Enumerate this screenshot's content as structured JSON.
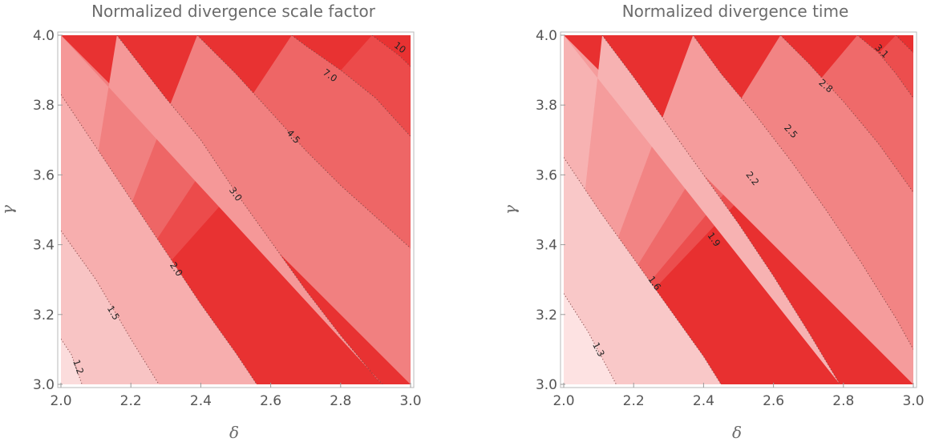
{
  "chart_data": [
    {
      "type": "contour",
      "title": "Normalized divergence scale factor",
      "xlabel": "δ",
      "ylabel": "γ",
      "xlim": [
        2.0,
        3.0
      ],
      "ylim": [
        3.0,
        4.0
      ],
      "xticks": [
        "2.0",
        "2.2",
        "2.4",
        "2.6",
        "2.8",
        "3.0"
      ],
      "yticks": [
        "3.0",
        "3.2",
        "3.4",
        "3.6",
        "3.8",
        "4.0"
      ],
      "levels": [
        "1.2",
        "1.5",
        "2.0",
        "3.0",
        "4.5",
        "7.0",
        "10"
      ],
      "fill_colors": [
        "#fbdcdc",
        "#f8c4c4",
        "#f7aeae",
        "#f59898",
        "#f18080",
        "#ee6666",
        "#ec4b4b",
        "#e83232"
      ],
      "contours": [
        {
          "level": "1.2",
          "points": [
            [
              2.0,
              3.13
            ],
            [
              2.03,
              3.085
            ],
            [
              2.06,
              3.0
            ]
          ],
          "label_at": [
            2.05,
            3.05
          ]
        },
        {
          "level": "1.5",
          "points": [
            [
              2.0,
              3.44
            ],
            [
              2.1,
              3.3
            ],
            [
              2.2,
              3.13
            ],
            [
              2.28,
              3.0
            ]
          ],
          "label_at": [
            2.15,
            3.205
          ]
        },
        {
          "level": "2.0",
          "points": [
            [
              2.0,
              3.83
            ],
            [
              2.1,
              3.68
            ],
            [
              2.2,
              3.53
            ],
            [
              2.3,
              3.38
            ],
            [
              2.4,
              3.23
            ],
            [
              2.5,
              3.09
            ],
            [
              2.56,
              3.0
            ]
          ],
          "label_at": [
            2.33,
            3.33
          ]
        },
        {
          "level": "3.0",
          "points": [
            [
              2.16,
              4.0
            ],
            [
              2.3,
              3.82
            ],
            [
              2.4,
              3.7
            ],
            [
              2.5,
              3.55
            ],
            [
              2.6,
              3.41
            ],
            [
              2.7,
              3.27
            ],
            [
              2.8,
              3.14
            ],
            [
              2.9,
              3.02
            ],
            [
              2.92,
              3.0
            ]
          ],
          "label_at": [
            2.5,
            3.545
          ]
        },
        {
          "level": "4.5",
          "points": [
            [
              2.39,
              4.0
            ],
            [
              2.5,
              3.89
            ],
            [
              2.6,
              3.78
            ],
            [
              2.7,
              3.67
            ],
            [
              2.8,
              3.57
            ],
            [
              2.9,
              3.48
            ],
            [
              3.0,
              3.39
            ]
          ],
          "label_at": [
            2.665,
            3.71
          ]
        },
        {
          "level": "7.0",
          "points": [
            [
              2.66,
              4.0
            ],
            [
              2.7,
              3.97
            ],
            [
              2.8,
              3.9
            ],
            [
              2.9,
              3.82
            ],
            [
              3.0,
              3.71
            ]
          ],
          "label_at": [
            2.77,
            3.885
          ]
        },
        {
          "level": "10",
          "points": [
            [
              2.89,
              4.0
            ],
            [
              2.93,
              3.97
            ],
            [
              2.97,
              3.94
            ],
            [
              3.0,
              3.91
            ]
          ],
          "label_at": [
            2.97,
            3.965
          ]
        }
      ]
    },
    {
      "type": "contour",
      "title": "Normalized divergence time",
      "xlabel": "δ",
      "ylabel": "γ",
      "xlim": [
        2.0,
        3.0
      ],
      "ylim": [
        3.0,
        4.0
      ],
      "xticks": [
        "2.0",
        "2.2",
        "2.4",
        "2.6",
        "2.8",
        "3.0"
      ],
      "yticks": [
        "3.0",
        "3.2",
        "3.4",
        "3.6",
        "3.8",
        "4.0"
      ],
      "levels": [
        "1.3",
        "1.6",
        "1.9",
        "2.2",
        "2.5",
        "2.8",
        "3.1"
      ],
      "fill_colors": [
        "#fde2e2",
        "#f9c8c8",
        "#f7b2b2",
        "#f59c9c",
        "#f28484",
        "#ef6a6a",
        "#ec4e4e",
        "#e83030"
      ],
      "contours": [
        {
          "level": "1.3",
          "points": [
            [
              2.0,
              3.26
            ],
            [
              2.07,
              3.15
            ],
            [
              2.15,
              3.0
            ]
          ],
          "label_at": [
            2.1,
            3.1
          ]
        },
        {
          "level": "1.6",
          "points": [
            [
              2.0,
              3.65
            ],
            [
              2.1,
              3.5
            ],
            [
              2.2,
              3.36
            ],
            [
              2.3,
              3.22
            ],
            [
              2.4,
              3.08
            ],
            [
              2.45,
              3.0
            ]
          ],
          "label_at": [
            2.26,
            3.29
          ]
        },
        {
          "level": "1.9",
          "points": [
            [
              2.11,
              4.0
            ],
            [
              2.2,
              3.88
            ],
            [
              2.3,
              3.74
            ],
            [
              2.4,
              3.6
            ],
            [
              2.5,
              3.46
            ],
            [
              2.6,
              3.31
            ],
            [
              2.7,
              3.15
            ],
            [
              2.79,
              3.0
            ]
          ],
          "label_at": [
            2.43,
            3.415
          ]
        },
        {
          "level": "2.2",
          "points": [
            [
              2.37,
              4.0
            ],
            [
              2.45,
              3.89
            ],
            [
              2.55,
              3.77
            ],
            [
              2.65,
              3.64
            ],
            [
              2.75,
              3.5
            ],
            [
              2.85,
              3.35
            ],
            [
              2.95,
              3.19
            ],
            [
              3.0,
              3.1
            ]
          ],
          "label_at": [
            2.54,
            3.59
          ]
        },
        {
          "level": "2.5",
          "points": [
            [
              2.62,
              4.0
            ],
            [
              2.7,
              3.92
            ],
            [
              2.8,
              3.81
            ],
            [
              2.9,
              3.69
            ],
            [
              3.0,
              3.55
            ]
          ],
          "label_at": [
            2.65,
            3.725
          ]
        },
        {
          "level": "2.8",
          "points": [
            [
              2.84,
              4.0
            ],
            [
              2.9,
              3.95
            ],
            [
              2.95,
              3.89
            ],
            [
              3.0,
              3.82
            ]
          ],
          "label_at": [
            2.75,
            3.855
          ]
        },
        {
          "level": "3.1",
          "points": [
            [
              2.95,
              4.0
            ],
            [
              2.97,
              3.98
            ],
            [
              3.0,
              3.95
            ]
          ],
          "label_at": [
            2.91,
            3.955
          ]
        }
      ]
    }
  ]
}
